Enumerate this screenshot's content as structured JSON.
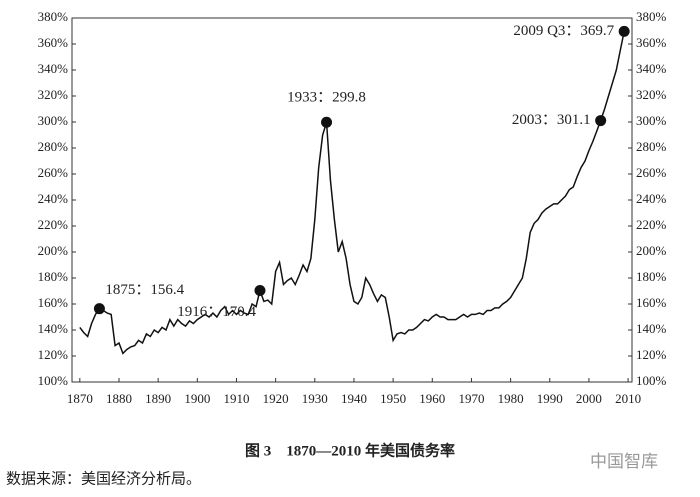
{
  "chart_data": {
    "type": "line",
    "x": [
      1870,
      1871,
      1872,
      1873,
      1874,
      1875,
      1876,
      1877,
      1878,
      1879,
      1880,
      1881,
      1882,
      1883,
      1884,
      1885,
      1886,
      1887,
      1888,
      1889,
      1890,
      1891,
      1892,
      1893,
      1894,
      1895,
      1896,
      1897,
      1898,
      1899,
      1900,
      1901,
      1902,
      1903,
      1904,
      1905,
      1906,
      1907,
      1908,
      1909,
      1910,
      1911,
      1912,
      1913,
      1914,
      1915,
      1916,
      1917,
      1918,
      1919,
      1920,
      1921,
      1922,
      1923,
      1924,
      1925,
      1926,
      1927,
      1928,
      1929,
      1930,
      1931,
      1932,
      1933,
      1934,
      1935,
      1936,
      1937,
      1938,
      1939,
      1940,
      1941,
      1942,
      1943,
      1944,
      1945,
      1946,
      1947,
      1948,
      1949,
      1950,
      1951,
      1952,
      1953,
      1954,
      1955,
      1956,
      1957,
      1958,
      1959,
      1960,
      1961,
      1962,
      1963,
      1964,
      1965,
      1966,
      1967,
      1968,
      1969,
      1970,
      1971,
      1972,
      1973,
      1974,
      1975,
      1976,
      1977,
      1978,
      1979,
      1980,
      1981,
      1982,
      1983,
      1984,
      1985,
      1986,
      1987,
      1988,
      1989,
      1990,
      1991,
      1992,
      1993,
      1994,
      1995,
      1996,
      1997,
      1998,
      1999,
      2000,
      2001,
      2002,
      2003,
      2004,
      2005,
      2006,
      2007,
      2008,
      2009
    ],
    "series": [
      {
        "color": "#111111",
        "values": [
          142,
          138,
          135,
          145,
          152,
          156.4,
          155,
          153,
          152,
          128,
          130,
          122,
          125,
          127,
          128,
          132,
          130,
          137,
          135,
          140,
          138,
          142,
          140,
          148,
          143,
          148,
          145,
          143,
          147,
          145,
          148,
          150,
          152,
          150,
          153,
          150,
          155,
          158,
          152,
          155,
          152,
          155,
          153,
          152,
          160,
          158,
          170.4,
          162,
          163,
          160,
          185,
          192,
          175,
          178,
          180,
          175,
          182,
          190,
          185,
          195,
          225,
          265,
          290,
          299.8,
          255,
          225,
          200,
          208,
          195,
          175,
          162,
          160,
          165,
          180,
          175,
          168,
          162,
          167,
          165,
          150,
          132,
          137,
          138,
          137,
          140,
          140,
          142,
          145,
          148,
          147,
          150,
          152,
          150,
          150,
          148,
          148,
          148,
          150,
          152,
          150,
          152,
          152,
          153,
          152,
          155,
          155,
          157,
          157,
          160,
          162,
          165,
          170,
          175,
          180,
          195,
          215,
          222,
          225,
          230,
          233,
          235,
          237,
          237,
          240,
          243,
          248,
          250,
          258,
          265,
          270,
          278,
          285,
          293,
          301.1,
          310,
          320,
          330,
          340,
          355,
          369.7
        ]
      }
    ],
    "annotations": [
      {
        "label": "1875：156.4",
        "x": 1875,
        "y": 156.4
      },
      {
        "label": "1916：170.4",
        "x": 1916,
        "y": 170.4
      },
      {
        "label": "1933：299.8",
        "x": 1933,
        "y": 299.8
      },
      {
        "label": "2003：301.1",
        "x": 2003,
        "y": 301.1
      },
      {
        "label": "2009 Q3：369.7",
        "x": 2009,
        "y": 369.7
      }
    ],
    "xlim": [
      1868,
      2011
    ],
    "xticks": [
      1870,
      1880,
      1890,
      1900,
      1910,
      1920,
      1930,
      1940,
      1950,
      1960,
      1970,
      1980,
      1990,
      2000,
      2010
    ],
    "ylim": [
      100,
      380
    ],
    "yticks": [
      {
        "value": 100,
        "label": "100%"
      },
      {
        "value": 120,
        "label": "120%"
      },
      {
        "value": 140,
        "label": "140%"
      },
      {
        "value": 160,
        "label": "160%"
      },
      {
        "value": 180,
        "label": "180%"
      },
      {
        "value": 200,
        "label": "200%"
      },
      {
        "value": 220,
        "label": "220%"
      },
      {
        "value": 240,
        "label": "240%"
      },
      {
        "value": 260,
        "label": "260%"
      },
      {
        "value": 280,
        "label": "280%"
      },
      {
        "value": 300,
        "label": "300%"
      },
      {
        "value": 320,
        "label": "320%"
      },
      {
        "value": 340,
        "label": "340%"
      },
      {
        "value": 360,
        "label": "360%"
      },
      {
        "value": 380,
        "label": "380%"
      }
    ],
    "y2lim": [
      100,
      380
    ],
    "y2ticks": [
      {
        "value": 100,
        "label": "100%"
      },
      {
        "value": 120,
        "label": "120%"
      },
      {
        "value": 140,
        "label": "140%"
      },
      {
        "value": 160,
        "label": "160%"
      },
      {
        "value": 180,
        "label": "180%"
      },
      {
        "value": 200,
        "label": "200%"
      },
      {
        "value": 220,
        "label": "220%"
      },
      {
        "value": 240,
        "label": "240%"
      },
      {
        "value": 260,
        "label": "260%"
      },
      {
        "value": 280,
        "label": "280%"
      },
      {
        "value": 300,
        "label": "300%"
      },
      {
        "value": 320,
        "label": "320%"
      },
      {
        "value": 340,
        "label": "340%"
      },
      {
        "value": 360,
        "label": "360%"
      },
      {
        "value": 380,
        "label": "380%"
      }
    ],
    "caption": "图 3　1870—2010 年美国债务率",
    "source": "数据来源：美国经济分析局。",
    "watermark": "中国智库"
  }
}
